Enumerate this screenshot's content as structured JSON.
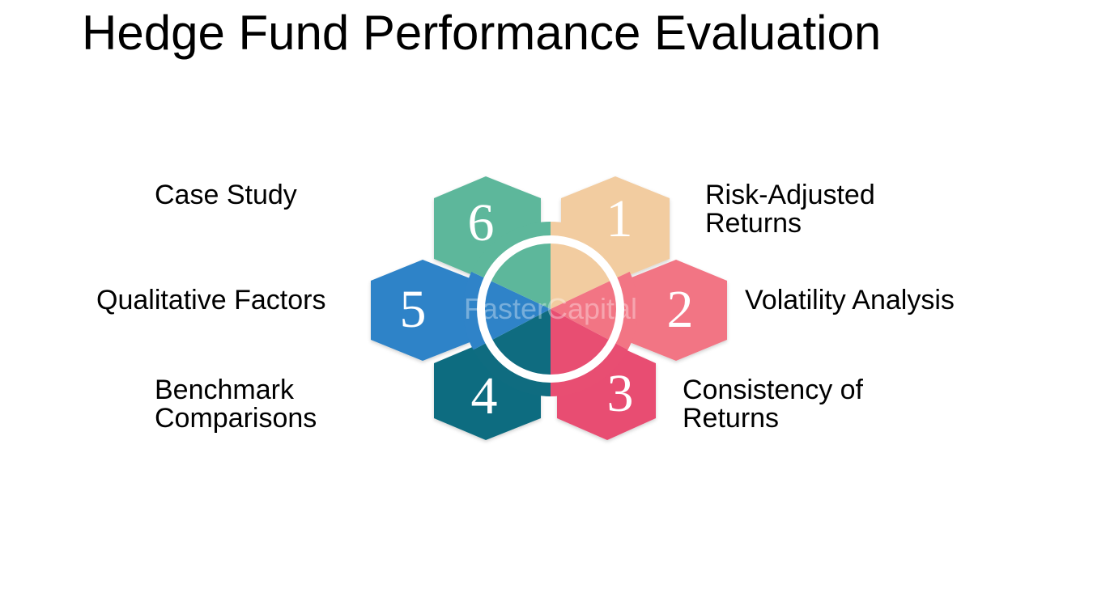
{
  "title": "Hedge Fund Performance Evaluation",
  "watermark": "FasterCapital",
  "steps": [
    {
      "number": "1",
      "label_lines": [
        "Risk-Adjusted",
        "Returns"
      ],
      "color": "#f2cca0"
    },
    {
      "number": "2",
      "label_lines": [
        "Volatility Analysis"
      ],
      "color": "#f27584"
    },
    {
      "number": "3",
      "label_lines": [
        "Consistency of",
        "Returns"
      ],
      "color": "#e84e72"
    },
    {
      "number": "4",
      "label_lines": [
        "Benchmark",
        "Comparisons"
      ],
      "color": "#0f6c80"
    },
    {
      "number": "5",
      "label_lines": [
        "Qualitative Factors"
      ],
      "color": "#2f83c8"
    },
    {
      "number": "6",
      "label_lines": [
        "Case Study"
      ],
      "color": "#5db79b"
    }
  ]
}
